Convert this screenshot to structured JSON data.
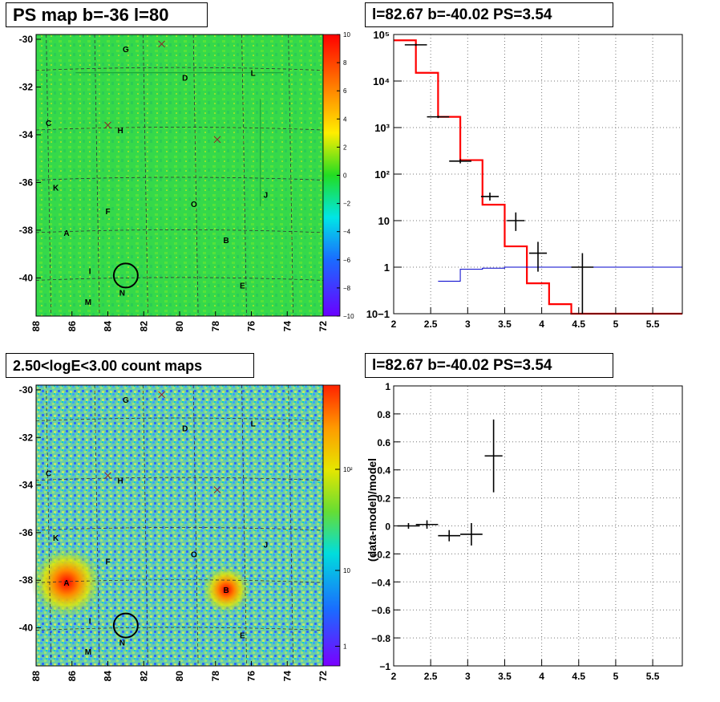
{
  "panels": {
    "ps_map": {
      "title": "PS map b=-36 l=80",
      "x_ticks": [
        "88",
        "86",
        "84",
        "82",
        "80",
        "78",
        "76",
        "74",
        "72"
      ],
      "y_ticks": [
        "-30",
        "-32",
        "-34",
        "-36",
        "-38",
        "-40"
      ],
      "colorbar_ticks": [
        "10",
        "8",
        "6",
        "4",
        "2",
        "0",
        "−2",
        "−4",
        "−6",
        "−8",
        "−10"
      ]
    },
    "count_map": {
      "title": "2.50<logE<3.00 count maps",
      "x_ticks": [
        "88",
        "86",
        "84",
        "82",
        "80",
        "78",
        "76",
        "74",
        "72"
      ],
      "y_ticks": [
        "-30",
        "-32",
        "-34",
        "-36",
        "-38",
        "-40"
      ],
      "colorbar_ticks": [
        "10²",
        "10",
        "1"
      ]
    },
    "spectrum": {
      "title": "l=82.67 b=-40.02 PS=3.54"
    },
    "residual": {
      "title": "l=82.67 b=-40.02 PS=3.54"
    }
  },
  "map_labels": [
    {
      "text": "G",
      "lon": 83.0,
      "lat": -30.4
    },
    {
      "text": "D",
      "lon": 79.7,
      "lat": -31.6
    },
    {
      "text": "L",
      "lon": 75.9,
      "lat": -31.4
    },
    {
      "text": "C",
      "lon": 87.3,
      "lat": -33.5
    },
    {
      "text": "H",
      "lon": 83.3,
      "lat": -33.8
    },
    {
      "text": "K",
      "lon": 86.9,
      "lat": -36.2
    },
    {
      "text": "F",
      "lon": 84.0,
      "lat": -37.2
    },
    {
      "text": "O",
      "lon": 79.2,
      "lat": -36.9
    },
    {
      "text": "J",
      "lon": 75.2,
      "lat": -36.5
    },
    {
      "text": "A",
      "lon": 86.3,
      "lat": -38.1
    },
    {
      "text": "B",
      "lon": 77.4,
      "lat": -38.4
    },
    {
      "text": "I",
      "lon": 85.0,
      "lat": -39.7
    },
    {
      "text": "N",
      "lon": 83.2,
      "lat": -40.6
    },
    {
      "text": "E",
      "lon": 76.5,
      "lat": -40.3
    },
    {
      "text": "M",
      "lon": 85.1,
      "lat": -41.0
    }
  ],
  "map_crosses": [
    {
      "lon": 81.0,
      "lat": -30.2
    },
    {
      "lon": 84.0,
      "lat": -33.6
    },
    {
      "lon": 77.9,
      "lat": -34.2
    }
  ],
  "chart_data": [
    {
      "type": "line",
      "panel": "spectrum",
      "title": "l=82.67 b=-40.02 PS=3.54",
      "xlim": [
        2,
        5.9
      ],
      "ylim": [
        0.1,
        100000
      ],
      "log_y": true,
      "grid": true,
      "x_ticks": [
        "2",
        "2.5",
        "3",
        "3.5",
        "4",
        "4.5",
        "5",
        "5.5"
      ],
      "y_ticks": [
        "10−1",
        "1",
        "10",
        "10²",
        "10³",
        "10⁴",
        "10⁵"
      ],
      "series": [
        {
          "color": "#ff0000",
          "style": "step",
          "edges": [
            2.0,
            2.3,
            2.6,
            2.9,
            3.2,
            3.5,
            3.8,
            4.1,
            4.4,
            4.7,
            5.0,
            5.3,
            5.6,
            5.9
          ],
          "values": [
            75000,
            15000,
            1700,
            200,
            22,
            2.8,
            0.45,
            0.16,
            0.09,
            0.09,
            0.09,
            0.09,
            0.09
          ]
        },
        {
          "color": "#0000cc",
          "style": "step",
          "edges": [
            2.6,
            2.9,
            3.2,
            3.5,
            3.8,
            4.1,
            4.4,
            4.7,
            5.0,
            5.3,
            5.6,
            5.9
          ],
          "values": [
            0.5,
            0.9,
            0.95,
            1.0,
            1.0,
            1.0,
            1.0,
            1.0,
            1.0,
            1.0,
            1.0
          ]
        },
        {
          "color": "#000000",
          "style": "points",
          "x": [
            2.3,
            2.6,
            2.9,
            3.3,
            3.65,
            3.95,
            4.55
          ],
          "y": [
            60000,
            1700,
            190,
            33,
            10,
            2,
            1
          ],
          "xerr": [
            0.15,
            0.15,
            0.15,
            0.12,
            0.12,
            0.12,
            0.15
          ],
          "ylo": [
            57000,
            1600,
            170,
            27,
            6,
            0.8,
            0.1
          ],
          "yhi": [
            63000,
            1800,
            210,
            40,
            15,
            3.5,
            2
          ]
        }
      ]
    },
    {
      "type": "scatter",
      "panel": "residual",
      "title": "l=82.67 b=-40.02 PS=3.54",
      "ylabel": "(data-model)/model",
      "xlim": [
        2,
        5.9
      ],
      "ylim": [
        -1,
        1
      ],
      "grid": true,
      "x_ticks": [
        "2",
        "2.5",
        "3",
        "3.5",
        "4",
        "4.5",
        "5",
        "5.5"
      ],
      "y_ticks": [
        "−1",
        "−0.8",
        "−0.6",
        "−0.4",
        "−0.2",
        "0",
        "0.2",
        "0.4",
        "0.6",
        "0.8",
        "1"
      ],
      "x": [
        2.2,
        2.45,
        2.75,
        3.05,
        3.35
      ],
      "y": [
        0.0,
        0.01,
        -0.07,
        -0.06,
        0.5
      ],
      "xerr": [
        0.15,
        0.15,
        0.15,
        0.15,
        0.12
      ],
      "yerr": [
        0.02,
        0.03,
        0.04,
        0.08,
        0.26
      ]
    }
  ]
}
